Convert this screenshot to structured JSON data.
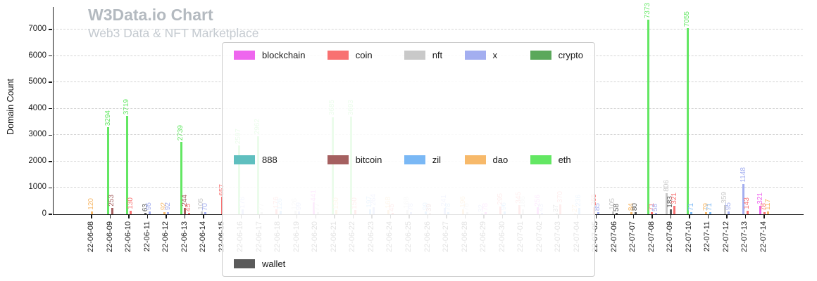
{
  "header": {
    "title": "W3Data.io Chart",
    "subtitle": "Web3 Data & NFT Marketplace"
  },
  "chart_data": {
    "type": "bar",
    "title": "W3Data.io Chart",
    "subtitle": "Web3 Data & NFT Marketplace",
    "xlabel": "",
    "ylabel": "Domain Count",
    "ylim": [
      0,
      7500
    ],
    "yticks": [
      0,
      1000,
      2000,
      3000,
      4000,
      5000,
      6000,
      7000
    ],
    "grid": "horizontal-dashed",
    "legend_position": "center-overlay",
    "legend": [
      {
        "label": "blockchain",
        "color": "#ee66ee"
      },
      {
        "label": "coin",
        "color": "#f87171"
      },
      {
        "label": "nft",
        "color": "#c9c9c9"
      },
      {
        "label": "x",
        "color": "#a3aef0"
      },
      {
        "label": "crypto",
        "color": "#5ba85b"
      },
      {
        "label": "888",
        "color": "#5fbfbf"
      },
      {
        "label": "bitcoin",
        "color": "#a56060"
      },
      {
        "label": "zil",
        "color": "#7ab8f5"
      },
      {
        "label": "dao",
        "color": "#f7b96a"
      },
      {
        "label": "eth",
        "color": "#63e763"
      },
      {
        "label": "wallet",
        "color": "#5a5a5a"
      }
    ],
    "categories": [
      "22-06-08",
      "22-06-09",
      "22-06-10",
      "22-06-11",
      "22-06-12",
      "22-06-13",
      "22-06-14",
      "22-06-15",
      "22-06-16",
      "22-06-17",
      "22-06-18",
      "22-06-19",
      "22-06-20",
      "22-06-21",
      "22-06-22",
      "22-06-23",
      "22-06-24",
      "22-06-25",
      "22-06-26",
      "22-06-27",
      "22-06-28",
      "22-06-29",
      "22-06-30",
      "22-07-01",
      "22-07-02",
      "22-07-03",
      "22-07-04",
      "22-07-05",
      "22-07-06",
      "22-07-07",
      "22-07-08",
      "22-07-09",
      "22-07-10",
      "22-07-11",
      "22-07-12",
      "22-07-13",
      "22-07-14"
    ],
    "points": [
      {
        "date": "22-06-08",
        "series": "dao",
        "value": 120
      },
      {
        "date": "22-06-09",
        "series": "eth",
        "value": 3294
      },
      {
        "date": "22-06-09",
        "series": "bitcoin",
        "value": 253
      },
      {
        "date": "22-06-10",
        "series": "eth",
        "value": 3719
      },
      {
        "date": "22-06-10",
        "series": "coin",
        "value": 130
      },
      {
        "date": "22-06-11",
        "series": "wallet",
        "value": 63
      },
      {
        "date": "22-06-11",
        "series": "x",
        "value": 95
      },
      {
        "date": "22-06-12",
        "series": "dao",
        "value": 92
      },
      {
        "date": "22-06-12",
        "series": "x",
        "value": 92
      },
      {
        "date": "22-06-13",
        "series": "eth",
        "value": 2739
      },
      {
        "date": "22-06-13",
        "series": "bitcoin",
        "value": 244
      },
      {
        "date": "22-06-13",
        "series": "coin",
        "value": 45
      },
      {
        "date": "22-06-14",
        "series": "nft",
        "value": 105
      },
      {
        "date": "22-06-14",
        "series": "x",
        "value": 70
      },
      {
        "date": "22-06-15",
        "series": "coin",
        "value": 657
      },
      {
        "date": "22-06-16",
        "series": "eth",
        "value": 2597
      },
      {
        "date": "22-06-16",
        "series": "x",
        "value": 176
      },
      {
        "date": "22-06-17",
        "series": "eth",
        "value": 2962
      },
      {
        "date": "22-06-17",
        "series": "nft",
        "value": 77
      },
      {
        "date": "22-06-18",
        "series": "coin",
        "value": 176
      },
      {
        "date": "22-06-18",
        "series": "zil",
        "value": 126
      },
      {
        "date": "22-06-19",
        "series": "nft",
        "value": 126
      },
      {
        "date": "22-06-19",
        "series": "x",
        "value": 99
      },
      {
        "date": "22-06-20",
        "series": "blockchain",
        "value": 441
      },
      {
        "date": "22-06-20",
        "series": "nft",
        "value": 77
      },
      {
        "date": "22-06-21",
        "series": "eth",
        "value": 3685
      },
      {
        "date": "22-06-21",
        "series": "dao",
        "value": 150
      },
      {
        "date": "22-06-22",
        "series": "eth",
        "value": 3693
      },
      {
        "date": "22-06-22",
        "series": "coin",
        "value": 150
      },
      {
        "date": "22-06-23",
        "series": "zil",
        "value": 197
      },
      {
        "date": "22-06-23",
        "series": "x",
        "value": 264
      },
      {
        "date": "22-06-24",
        "series": "dao",
        "value": 168
      },
      {
        "date": "22-06-24",
        "series": "coin",
        "value": 45
      },
      {
        "date": "22-06-25",
        "series": "nft",
        "value": 168
      },
      {
        "date": "22-06-25",
        "series": "x",
        "value": 78
      },
      {
        "date": "22-06-26",
        "series": "zil",
        "value": 99
      },
      {
        "date": "22-06-26",
        "series": "bitcoin",
        "value": 39
      },
      {
        "date": "22-06-27",
        "series": "x",
        "value": 241
      },
      {
        "date": "22-06-27",
        "series": "zil",
        "value": 78
      },
      {
        "date": "22-06-28",
        "series": "dao",
        "value": 196
      },
      {
        "date": "22-06-28",
        "series": "nft",
        "value": 78
      },
      {
        "date": "22-06-29",
        "series": "x",
        "value": 32
      },
      {
        "date": "22-06-29",
        "series": "blockchain",
        "value": 78
      },
      {
        "date": "22-06-30",
        "series": "coin",
        "value": 295
      },
      {
        "date": "22-06-30",
        "series": "zil",
        "value": 96
      },
      {
        "date": "22-07-01",
        "series": "coin",
        "value": 345
      },
      {
        "date": "22-07-01",
        "series": "nft",
        "value": 186
      },
      {
        "date": "22-07-02",
        "series": "blockchain",
        "value": 256
      },
      {
        "date": "22-07-02",
        "series": "x",
        "value": 43
      },
      {
        "date": "22-07-03",
        "series": "wallet",
        "value": 37
      },
      {
        "date": "22-07-03",
        "series": "coin",
        "value": 370
      },
      {
        "date": "22-07-04",
        "series": "dao",
        "value": 27
      },
      {
        "date": "22-07-04",
        "series": "zil",
        "value": 236
      },
      {
        "date": "22-07-05",
        "series": "coin",
        "value": 265
      },
      {
        "date": "22-07-05",
        "series": "x",
        "value": 85
      },
      {
        "date": "22-07-06",
        "series": "nft",
        "value": 105
      },
      {
        "date": "22-07-06",
        "series": "wallet",
        "value": 58
      },
      {
        "date": "22-07-07",
        "series": "dao",
        "value": 84
      },
      {
        "date": "22-07-07",
        "series": "wallet",
        "value": 80
      },
      {
        "date": "22-07-08",
        "series": "eth",
        "value": 7373
      },
      {
        "date": "22-07-08",
        "series": "coin",
        "value": 71
      },
      {
        "date": "22-07-08",
        "series": "x",
        "value": 58
      },
      {
        "date": "22-07-09",
        "series": "nft",
        "value": 806
      },
      {
        "date": "22-07-09",
        "series": "wallet",
        "value": 183
      },
      {
        "date": "22-07-09",
        "series": "coin",
        "value": 321
      },
      {
        "date": "22-07-10",
        "series": "eth",
        "value": 7055
      },
      {
        "date": "22-07-10",
        "series": "zil",
        "value": 71
      },
      {
        "date": "22-07-11",
        "series": "dao",
        "value": 79
      },
      {
        "date": "22-07-11",
        "series": "zil",
        "value": 71
      },
      {
        "date": "22-07-12",
        "series": "nft",
        "value": 359
      },
      {
        "date": "22-07-12",
        "series": "x",
        "value": 95
      },
      {
        "date": "22-07-13",
        "series": "x",
        "value": 1148
      },
      {
        "date": "22-07-13",
        "series": "coin",
        "value": 143
      },
      {
        "date": "22-07-14",
        "series": "blockchain",
        "value": 321
      },
      {
        "date": "22-07-14",
        "series": "coin",
        "value": 78
      },
      {
        "date": "22-07-14",
        "series": "dao",
        "value": 117
      }
    ]
  }
}
